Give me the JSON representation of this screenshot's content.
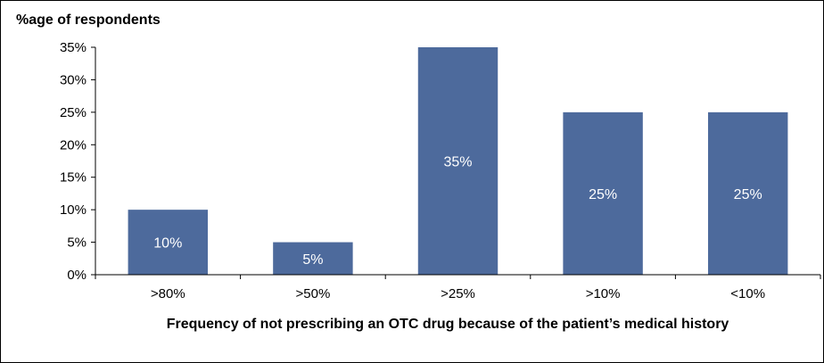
{
  "chart_data": {
    "type": "bar",
    "categories": [
      ">80%",
      ">50%",
      ">25%",
      ">10%",
      "<10%"
    ],
    "values": [
      10,
      5,
      35,
      25,
      25
    ],
    "data_labels": [
      "10%",
      "5%",
      "35%",
      "25%",
      "25%"
    ],
    "title": "",
    "xlabel": "Frequency of not prescribing an OTC drug because of the patient’s medical history",
    "ylabel": "%age of respondents",
    "ylim": [
      0,
      35
    ],
    "yticks": [
      0,
      5,
      10,
      15,
      20,
      25,
      30,
      35
    ],
    "ytick_labels": [
      "0%",
      "5%",
      "10%",
      "15%",
      "20%",
      "25%",
      "30%",
      "35%"
    ],
    "bar_color": "#4D6A9C",
    "grid": false,
    "legend": "none"
  }
}
